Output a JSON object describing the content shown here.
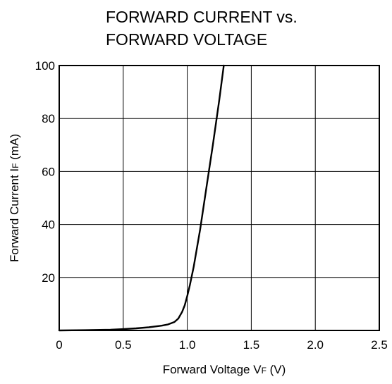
{
  "chart_data": {
    "type": "line",
    "title_line1": "FORWARD CURRENT vs.",
    "title_line2": "FORWARD VOLTAGE",
    "xlabel": {
      "prefix": "Forward Voltage  V",
      "subscript": "F",
      "suffix": " (V)"
    },
    "ylabel": {
      "prefix": "Forward Current  I",
      "subscript": "F",
      "suffix": " (mA)"
    },
    "xlim": [
      0,
      2.5
    ],
    "ylim": [
      0,
      100
    ],
    "x_ticks": [
      {
        "value": 0,
        "label": "0"
      },
      {
        "value": 0.5,
        "label": "0.5"
      },
      {
        "value": 1.0,
        "label": "1.0"
      },
      {
        "value": 1.5,
        "label": "1.5"
      },
      {
        "value": 2.0,
        "label": "2.0"
      },
      {
        "value": 2.5,
        "label": "2.5"
      }
    ],
    "y_ticks": [
      {
        "value": 20,
        "label": "20"
      },
      {
        "value": 40,
        "label": "40"
      },
      {
        "value": 60,
        "label": "60"
      },
      {
        "value": 80,
        "label": "80"
      },
      {
        "value": 100,
        "label": "100"
      }
    ],
    "grid": true,
    "series": [
      {
        "x": [
          0.0,
          0.2,
          0.4,
          0.5,
          0.6,
          0.7,
          0.8,
          0.85,
          0.9,
          0.93,
          0.96,
          0.98,
          1.0,
          1.02,
          1.05,
          1.1,
          1.15,
          1.2,
          1.25,
          1.285
        ],
        "y": [
          0.0,
          0.1,
          0.3,
          0.5,
          0.8,
          1.2,
          1.8,
          2.3,
          3.2,
          4.5,
          7.0,
          9.5,
          13.0,
          17.0,
          24.0,
          38.0,
          54.0,
          70.0,
          87.0,
          100.0
        ]
      }
    ]
  }
}
